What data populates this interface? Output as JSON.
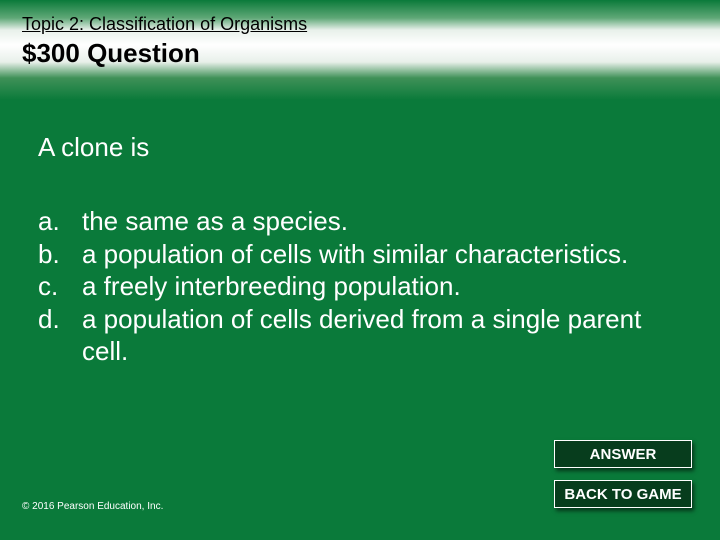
{
  "colors": {
    "slide_bg": "#0a7a3a",
    "button_bg": "#073d1d",
    "button_border": "#ffffff",
    "text_light": "#ffffff",
    "text_dark": "#000000",
    "gradient_mid": "#ffffff"
  },
  "typography": {
    "topic_fontsize": 18,
    "price_fontsize": 26,
    "body_fontsize": 26,
    "button_fontsize": 15,
    "copyright_fontsize": 10
  },
  "header": {
    "topic": "Topic 2: Classification of Organisms",
    "price_label": "$300 Question"
  },
  "question": {
    "stem": "A clone is",
    "options": [
      {
        "letter": "a.",
        "text": "the same as a species."
      },
      {
        "letter": "b.",
        "text": "a population of cells with similar characteristics."
      },
      {
        "letter": "c.",
        "text": "a freely interbreeding population."
      },
      {
        "letter": "d.",
        "text": "a population of cells derived from a single parent cell."
      }
    ]
  },
  "buttons": {
    "answer": "ANSWER",
    "back": "BACK TO GAME"
  },
  "footer": {
    "copyright": "© 2016 Pearson Education, Inc."
  }
}
